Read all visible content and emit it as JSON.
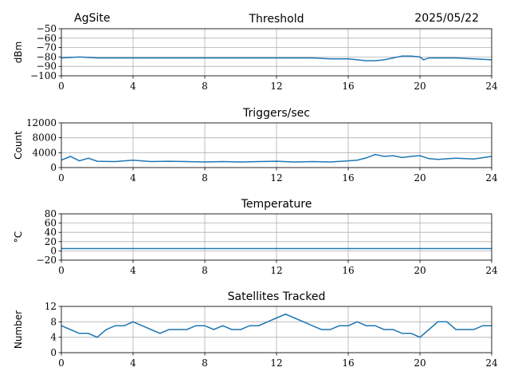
{
  "header": {
    "site": "AgSite",
    "date": "2025/05/22"
  },
  "colors": {
    "series": "#1f77b4",
    "grid": "#b0b0b0",
    "axis": "#000000"
  },
  "chart_data": [
    {
      "type": "line",
      "title": "Threshold",
      "ylabel": "dBm",
      "xlim": [
        0,
        24
      ],
      "ylim": [
        -100,
        -50
      ],
      "xticks": [
        0,
        4,
        8,
        12,
        16,
        20,
        24
      ],
      "yticks": [
        -100,
        -90,
        -80,
        -70,
        -60,
        -50
      ],
      "ytick_labels": [
        "−100",
        "−90",
        "−80",
        "−70",
        "−60",
        "−50"
      ],
      "grid": true,
      "series": [
        {
          "x": [
            0,
            1,
            2,
            3,
            4,
            5,
            6,
            7,
            8,
            9,
            10,
            11,
            12,
            13,
            14,
            15,
            16,
            16.5,
            17,
            17.5,
            18,
            18.5,
            19,
            19.5,
            20,
            20.2,
            20.5,
            21,
            22,
            23,
            24
          ],
          "values": [
            -81,
            -80,
            -81,
            -81,
            -81,
            -81,
            -81,
            -81,
            -81,
            -81,
            -81,
            -81,
            -81,
            -81,
            -81,
            -82,
            -82,
            -83,
            -84,
            -84,
            -83,
            -81,
            -79,
            -79,
            -80,
            -83,
            -81,
            -81,
            -81,
            -82,
            -83
          ]
        }
      ]
    },
    {
      "type": "line",
      "title": "Triggers/sec",
      "ylabel": "Count",
      "xlim": [
        0,
        24
      ],
      "ylim": [
        0,
        12000
      ],
      "xticks": [
        0,
        4,
        8,
        12,
        16,
        20,
        24
      ],
      "yticks": [
        0,
        4000,
        8000,
        12000
      ],
      "ytick_labels": [
        "0",
        "4000",
        "8000",
        "12000"
      ],
      "grid": true,
      "series": [
        {
          "x": [
            0,
            0.5,
            1,
            1.5,
            2,
            3,
            4,
            5,
            6,
            7,
            8,
            9,
            10,
            11,
            12,
            13,
            14,
            15,
            16,
            16.5,
            17,
            17.5,
            18,
            18.5,
            19,
            19.5,
            20,
            20.5,
            21,
            22,
            23,
            24
          ],
          "values": [
            2000,
            3000,
            1800,
            2500,
            1700,
            1600,
            2000,
            1600,
            1700,
            1600,
            1500,
            1600,
            1500,
            1600,
            1700,
            1500,
            1600,
            1500,
            1800,
            2000,
            2600,
            3500,
            3000,
            3200,
            2700,
            3000,
            3200,
            2400,
            2200,
            2500,
            2300,
            3000
          ]
        }
      ]
    },
    {
      "type": "line",
      "title": "Temperature",
      "ylabel": "°C",
      "xlim": [
        0,
        24
      ],
      "ylim": [
        -20,
        80
      ],
      "xticks": [
        0,
        4,
        8,
        12,
        16,
        20,
        24
      ],
      "yticks": [
        -20,
        0,
        20,
        40,
        60,
        80
      ],
      "ytick_labels": [
        "−20",
        "0",
        "20",
        "40",
        "60",
        "80"
      ],
      "grid": true,
      "series": [
        {
          "x": [
            0,
            24
          ],
          "values": [
            5,
            5
          ]
        }
      ]
    },
    {
      "type": "line",
      "title": "Satellites Tracked",
      "ylabel": "Number",
      "xlim": [
        0,
        24
      ],
      "ylim": [
        0,
        12
      ],
      "xticks": [
        0,
        4,
        8,
        12,
        16,
        20,
        24
      ],
      "yticks": [
        0,
        4,
        8,
        12
      ],
      "ytick_labels": [
        "0",
        "4",
        "8",
        "12"
      ],
      "grid": true,
      "series": [
        {
          "x": [
            0,
            0.5,
            1,
            1.5,
            2,
            2.5,
            3,
            3.5,
            4,
            4.5,
            5,
            5.5,
            6,
            6.5,
            7,
            7.5,
            8,
            8.5,
            9,
            9.5,
            10,
            10.5,
            11,
            11.5,
            12,
            12.5,
            13,
            13.5,
            14,
            14.5,
            15,
            15.5,
            16,
            16.5,
            17,
            17.5,
            18,
            18.5,
            19,
            19.5,
            20,
            20.5,
            21,
            21.5,
            22,
            22.5,
            23,
            23.5,
            24
          ],
          "values": [
            7,
            6,
            5,
            5,
            4,
            6,
            7,
            7,
            8,
            7,
            6,
            5,
            6,
            6,
            6,
            7,
            7,
            6,
            7,
            6,
            6,
            7,
            7,
            8,
            9,
            10,
            9,
            8,
            7,
            6,
            6,
            7,
            7,
            8,
            7,
            7,
            6,
            6,
            5,
            5,
            4,
            6,
            8,
            8,
            6,
            6,
            6,
            7,
            7
          ]
        }
      ]
    }
  ]
}
